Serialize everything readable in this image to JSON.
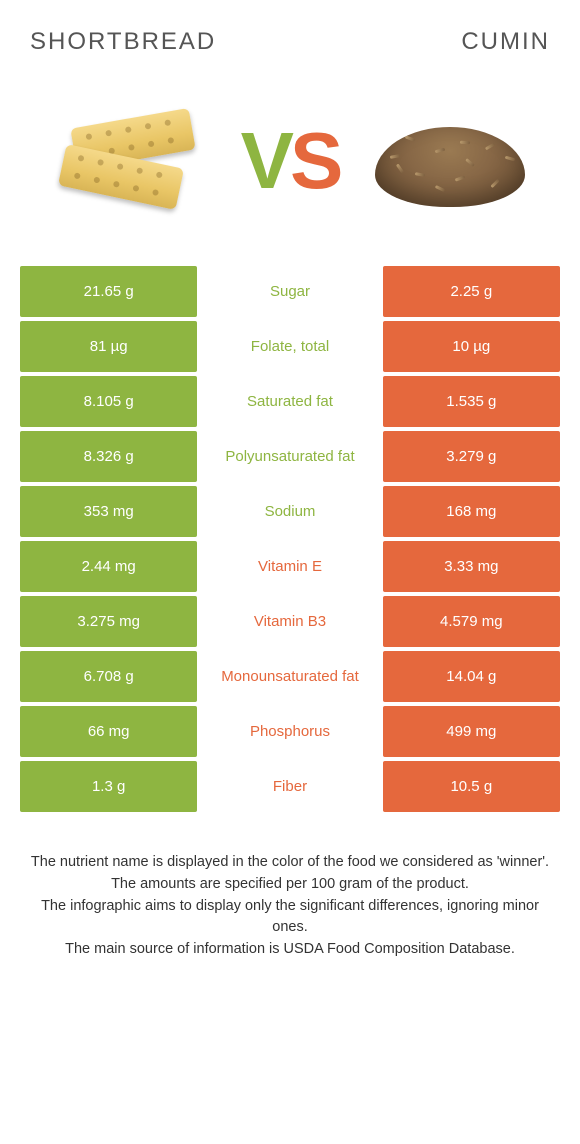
{
  "colors": {
    "left": "#8eb541",
    "right": "#e5683d",
    "vs_v": "#8eb541",
    "vs_s": "#e5683d"
  },
  "header": {
    "left_title": "SHORTBREAD",
    "right_title": "CUMIN",
    "vs_v": "V",
    "vs_s": "S"
  },
  "rows": [
    {
      "left": "21.65 g",
      "label": "Sugar",
      "right": "2.25 g",
      "winner": "left"
    },
    {
      "left": "81 µg",
      "label": "Folate, total",
      "right": "10 µg",
      "winner": "left"
    },
    {
      "left": "8.105 g",
      "label": "Saturated fat",
      "right": "1.535 g",
      "winner": "left"
    },
    {
      "left": "8.326 g",
      "label": "Polyunsaturated fat",
      "right": "3.279 g",
      "winner": "left"
    },
    {
      "left": "353 mg",
      "label": "Sodium",
      "right": "168 mg",
      "winner": "left"
    },
    {
      "left": "2.44 mg",
      "label": "Vitamin E",
      "right": "3.33 mg",
      "winner": "right"
    },
    {
      "left": "3.275 mg",
      "label": "Vitamin B3",
      "right": "4.579 mg",
      "winner": "right"
    },
    {
      "left": "6.708 g",
      "label": "Monounsaturated fat",
      "right": "14.04 g",
      "winner": "right"
    },
    {
      "left": "66 mg",
      "label": "Phosphorus",
      "right": "499 mg",
      "winner": "right"
    },
    {
      "left": "1.3 g",
      "label": "Fiber",
      "right": "10.5 g",
      "winner": "right"
    }
  ],
  "footer": {
    "l1": "The nutrient name is displayed in the color of the food we considered as 'winner'.",
    "l2": "The amounts are specified per 100 gram of the product.",
    "l3": "The infographic aims to display only the significant differences, ignoring minor ones.",
    "l4": "The main source of information is USDA Food Composition Database."
  }
}
